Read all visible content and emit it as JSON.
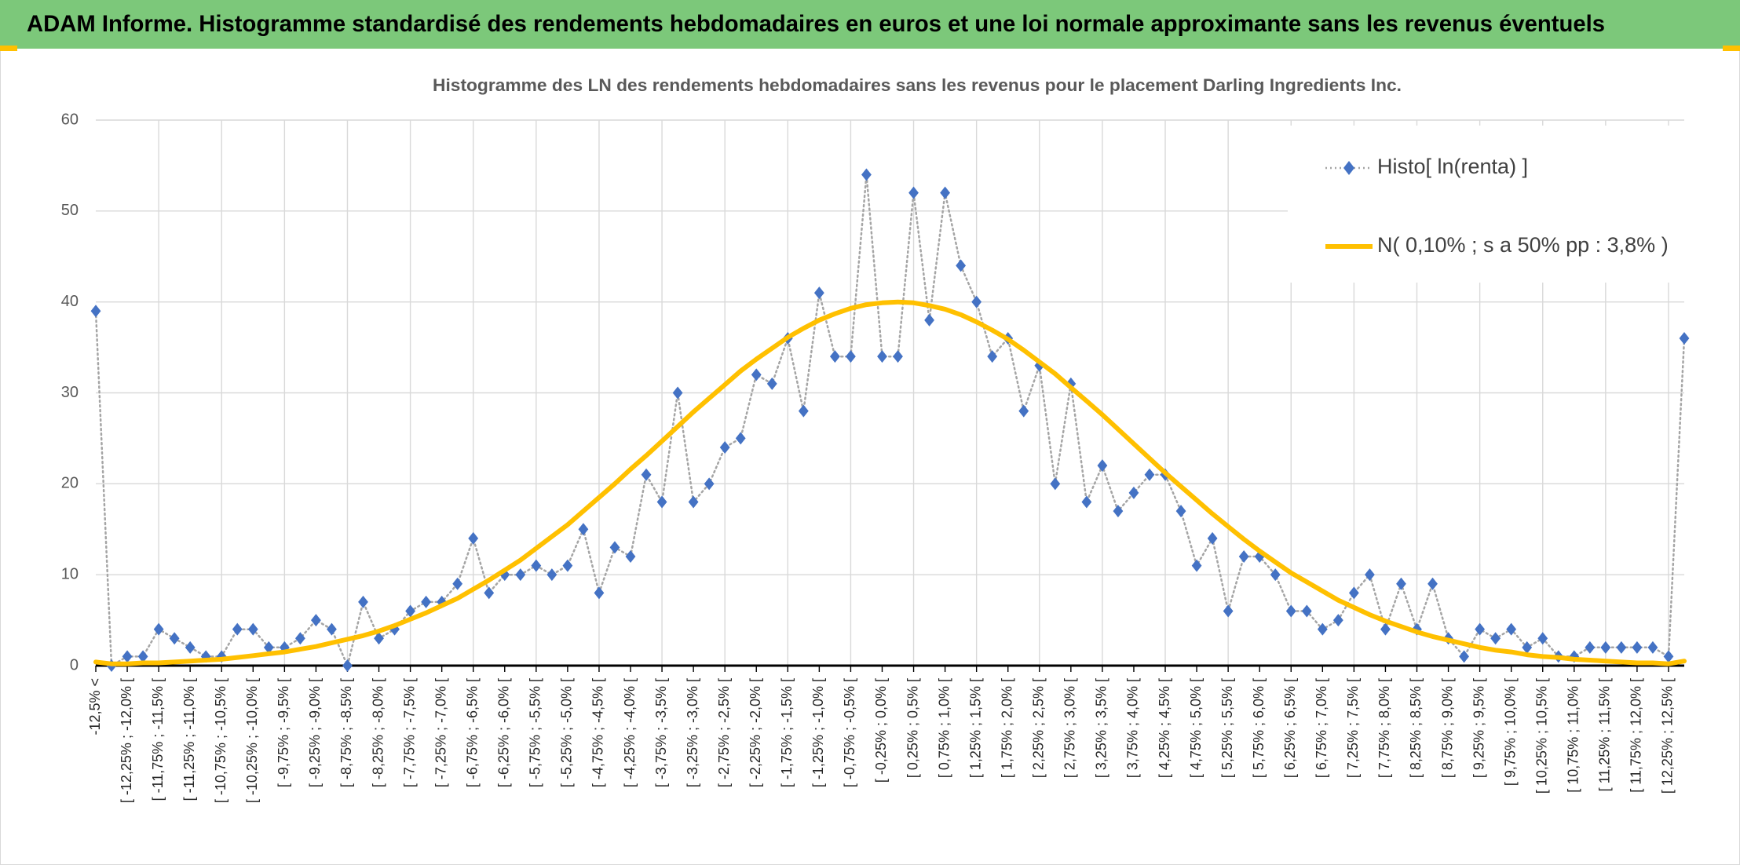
{
  "header": {
    "title": "ADAM Informe. Histogramme standardisé des rendements hebdomadaires en euros et une loi normale approximante sans les revenus éventuels"
  },
  "chart_data": {
    "type": "line",
    "title": "Histogramme des LN des rendements hebdomadaires sans les revenus pour le placement Darling Ingredients Inc.",
    "categories": [
      "-12,5% <",
      null,
      "[ -12,25% ; -12,0% [",
      null,
      "[ -11,75% ; -11,5% [",
      null,
      "[ -11,25% ; -11,0% [",
      null,
      "[ -10,75% ; -10,5% [",
      null,
      "[ -10,25% ; -10,0% [",
      null,
      "[ -9,75% ; -9,5% [",
      null,
      "[ -9,25% ; -9,0% [",
      null,
      "[ -8,75% ; -8,5% [",
      null,
      "[ -8,25% ; -8,0% [",
      null,
      "[ -7,75% ; -7,5% [",
      null,
      "[ -7,25% ; -7,0% [",
      null,
      "[ -6,75% ; -6,5% [",
      null,
      "[ -6,25% ; -6,0% [",
      null,
      "[ -5,75% ; -5,5% [",
      null,
      "[ -5,25% ; -5,0% [",
      null,
      "[ -4,75% ; -4,5% [",
      null,
      "[ -4,25% ; -4,0% [",
      null,
      "[ -3,75% ; -3,5% [",
      null,
      "[ -3,25% ; -3,0% [",
      null,
      "[ -2,75% ; -2,5% [",
      null,
      "[ -2,25% ; -2,0% [",
      null,
      "[ -1,75% ; -1,5% [",
      null,
      "[ -1,25% ; -1,0% [",
      null,
      "[ -0,75% ; -0,5% [",
      null,
      "[ -0,25% ; 0,0% [",
      null,
      "[ 0,25% ; 0,5% [",
      null,
      "[ 0,75% ; 1,0% [",
      null,
      "[ 1,25% ; 1,5% [",
      null,
      "[ 1,75% ; 2,0% [",
      null,
      "[ 2,25% ; 2,5% [",
      null,
      "[ 2,75% ; 3,0% [",
      null,
      "[ 3,25% ; 3,5% [",
      null,
      "[ 3,75% ; 4,0% [",
      null,
      "[ 4,25% ; 4,5% [",
      null,
      "[ 4,75% ; 5,0% [",
      null,
      "[ 5,25% ; 5,5% [",
      null,
      "[ 5,75% ; 6,0% [",
      null,
      "[ 6,25% ; 6,5% [",
      null,
      "[ 6,75% ; 7,0% [",
      null,
      "[ 7,25% ; 7,5% [",
      null,
      "[ 7,75% ; 8,0% [",
      null,
      "[ 8,25% ; 8,5% [",
      null,
      "[ 8,75% ; 9,0% [",
      null,
      "[ 9,25% ; 9,5% [",
      null,
      "[ 9,75% ; 10,0% [",
      null,
      "[ 10,25% ; 10,5% [",
      null,
      "[ 10,75% ; 11,0% [",
      null,
      "[ 11,25% ; 11,5% [",
      null,
      "[ 11,75% ; 12,0% [",
      null,
      "[ 12,25% ; 12,5% [",
      null
    ],
    "series": [
      {
        "name": "Histo[ ln(renta) ]",
        "color": "#4472c4",
        "line_color": "#a5a5a5",
        "line_style": "dotted",
        "marker": "diamond",
        "values": [
          39,
          0,
          1,
          1,
          4,
          3,
          2,
          1,
          1,
          4,
          4,
          2,
          2,
          3,
          5,
          4,
          0,
          7,
          3,
          4,
          6,
          7,
          7,
          9,
          14,
          8,
          10,
          10,
          11,
          10,
          11,
          15,
          8,
          13,
          12,
          21,
          18,
          30,
          18,
          20,
          24,
          25,
          32,
          31,
          36,
          28,
          41,
          34,
          34,
          54,
          34,
          34,
          52,
          38,
          52,
          44,
          40,
          34,
          36,
          28,
          33,
          20,
          31,
          18,
          22,
          17,
          19,
          21,
          21,
          17,
          11,
          14,
          6,
          12,
          12,
          10,
          6,
          6,
          4,
          5,
          8,
          10,
          4,
          9,
          4,
          9,
          3,
          1,
          4,
          3,
          4,
          2,
          3,
          1,
          1,
          2,
          2,
          2,
          2,
          2,
          1,
          36
        ]
      },
      {
        "name": "N( 0,10% ; s a 50% pp : 3,8% )",
        "color": "#ffc000",
        "line_style": "solid",
        "marker": "none",
        "values": [
          0.4,
          0.2,
          0.2,
          0.3,
          0.3,
          0.4,
          0.5,
          0.6,
          0.7,
          0.9,
          1.1,
          1.3,
          1.5,
          1.8,
          2.1,
          2.5,
          2.9,
          3.3,
          3.8,
          4.4,
          5.1,
          5.8,
          6.6,
          7.4,
          8.4,
          9.4,
          10.5,
          11.6,
          12.9,
          14.2,
          15.5,
          17.0,
          18.5,
          20.0,
          21.6,
          23.1,
          24.7,
          26.3,
          27.9,
          29.4,
          30.9,
          32.4,
          33.7,
          34.9,
          36.1,
          37.1,
          38.0,
          38.7,
          39.3,
          39.7,
          39.9,
          40.0,
          39.9,
          39.6,
          39.2,
          38.6,
          37.8,
          36.9,
          35.9,
          34.7,
          33.4,
          32.1,
          30.6,
          29.1,
          27.6,
          26.0,
          24.4,
          22.8,
          21.2,
          19.7,
          18.2,
          16.7,
          15.3,
          13.9,
          12.6,
          11.4,
          10.2,
          9.2,
          8.2,
          7.2,
          6.4,
          5.6,
          4.9,
          4.3,
          3.7,
          3.2,
          2.8,
          2.4,
          2.0,
          1.7,
          1.5,
          1.2,
          1.0,
          0.9,
          0.7,
          0.6,
          0.5,
          0.4,
          0.3,
          0.3,
          0.2,
          0.5
        ]
      }
    ],
    "ylim": [
      0,
      60
    ],
    "yticks": [
      0,
      10,
      20,
      30,
      40,
      50,
      60
    ],
    "grid": true,
    "legend": "upper right"
  }
}
